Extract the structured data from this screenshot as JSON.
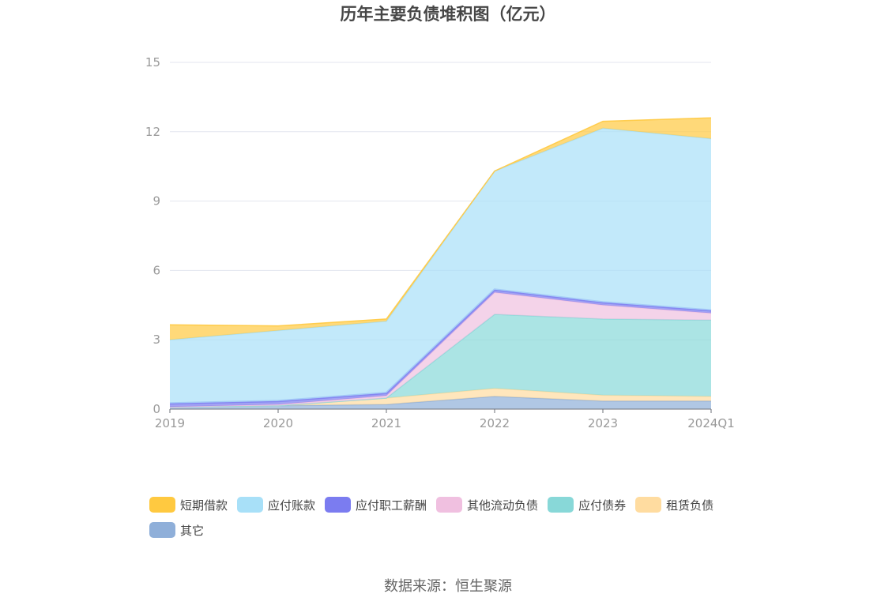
{
  "title": "历年主要负债堆积图（亿元）",
  "source": "数据来源：恒生聚源",
  "chart_data": {
    "type": "area",
    "stacked": true,
    "categories": [
      "2019",
      "2020",
      "2021",
      "2022",
      "2023",
      "2024Q1"
    ],
    "ylim": [
      0,
      15
    ],
    "yticks": [
      0,
      3,
      6,
      9,
      12,
      15
    ],
    "grid": true,
    "legend_position": "bottom",
    "series": [
      {
        "name": "其它",
        "color": "#8fafd9",
        "values": [
          0.1,
          0.15,
          0.2,
          0.55,
          0.35,
          0.35
        ]
      },
      {
        "name": "租赁负债",
        "color": "#ffdca0",
        "values": [
          0.0,
          0.0,
          0.28,
          0.35,
          0.25,
          0.2
        ]
      },
      {
        "name": "应付债券",
        "color": "#88d8d8",
        "values": [
          0.0,
          0.0,
          0.0,
          3.2,
          3.3,
          3.3
        ]
      },
      {
        "name": "其他流动负债",
        "color": "#f0c0e0",
        "values": [
          0.0,
          0.05,
          0.1,
          0.95,
          0.6,
          0.3
        ]
      },
      {
        "name": "应付职工薪酬",
        "color": "#7b7cf0",
        "values": [
          0.15,
          0.15,
          0.12,
          0.12,
          0.12,
          0.12
        ]
      },
      {
        "name": "应付账款",
        "color": "#a8e0f8",
        "values": [
          2.75,
          3.05,
          3.1,
          5.13,
          7.53,
          7.43
        ]
      },
      {
        "name": "短期借款",
        "color": "#ffc940",
        "values": [
          0.65,
          0.2,
          0.1,
          0.0,
          0.3,
          0.9
        ]
      }
    ],
    "legend_order": [
      "短期借款",
      "应付账款",
      "应付职工薪酬",
      "其他流动负债",
      "应付债券",
      "租赁负债",
      "其它"
    ]
  }
}
